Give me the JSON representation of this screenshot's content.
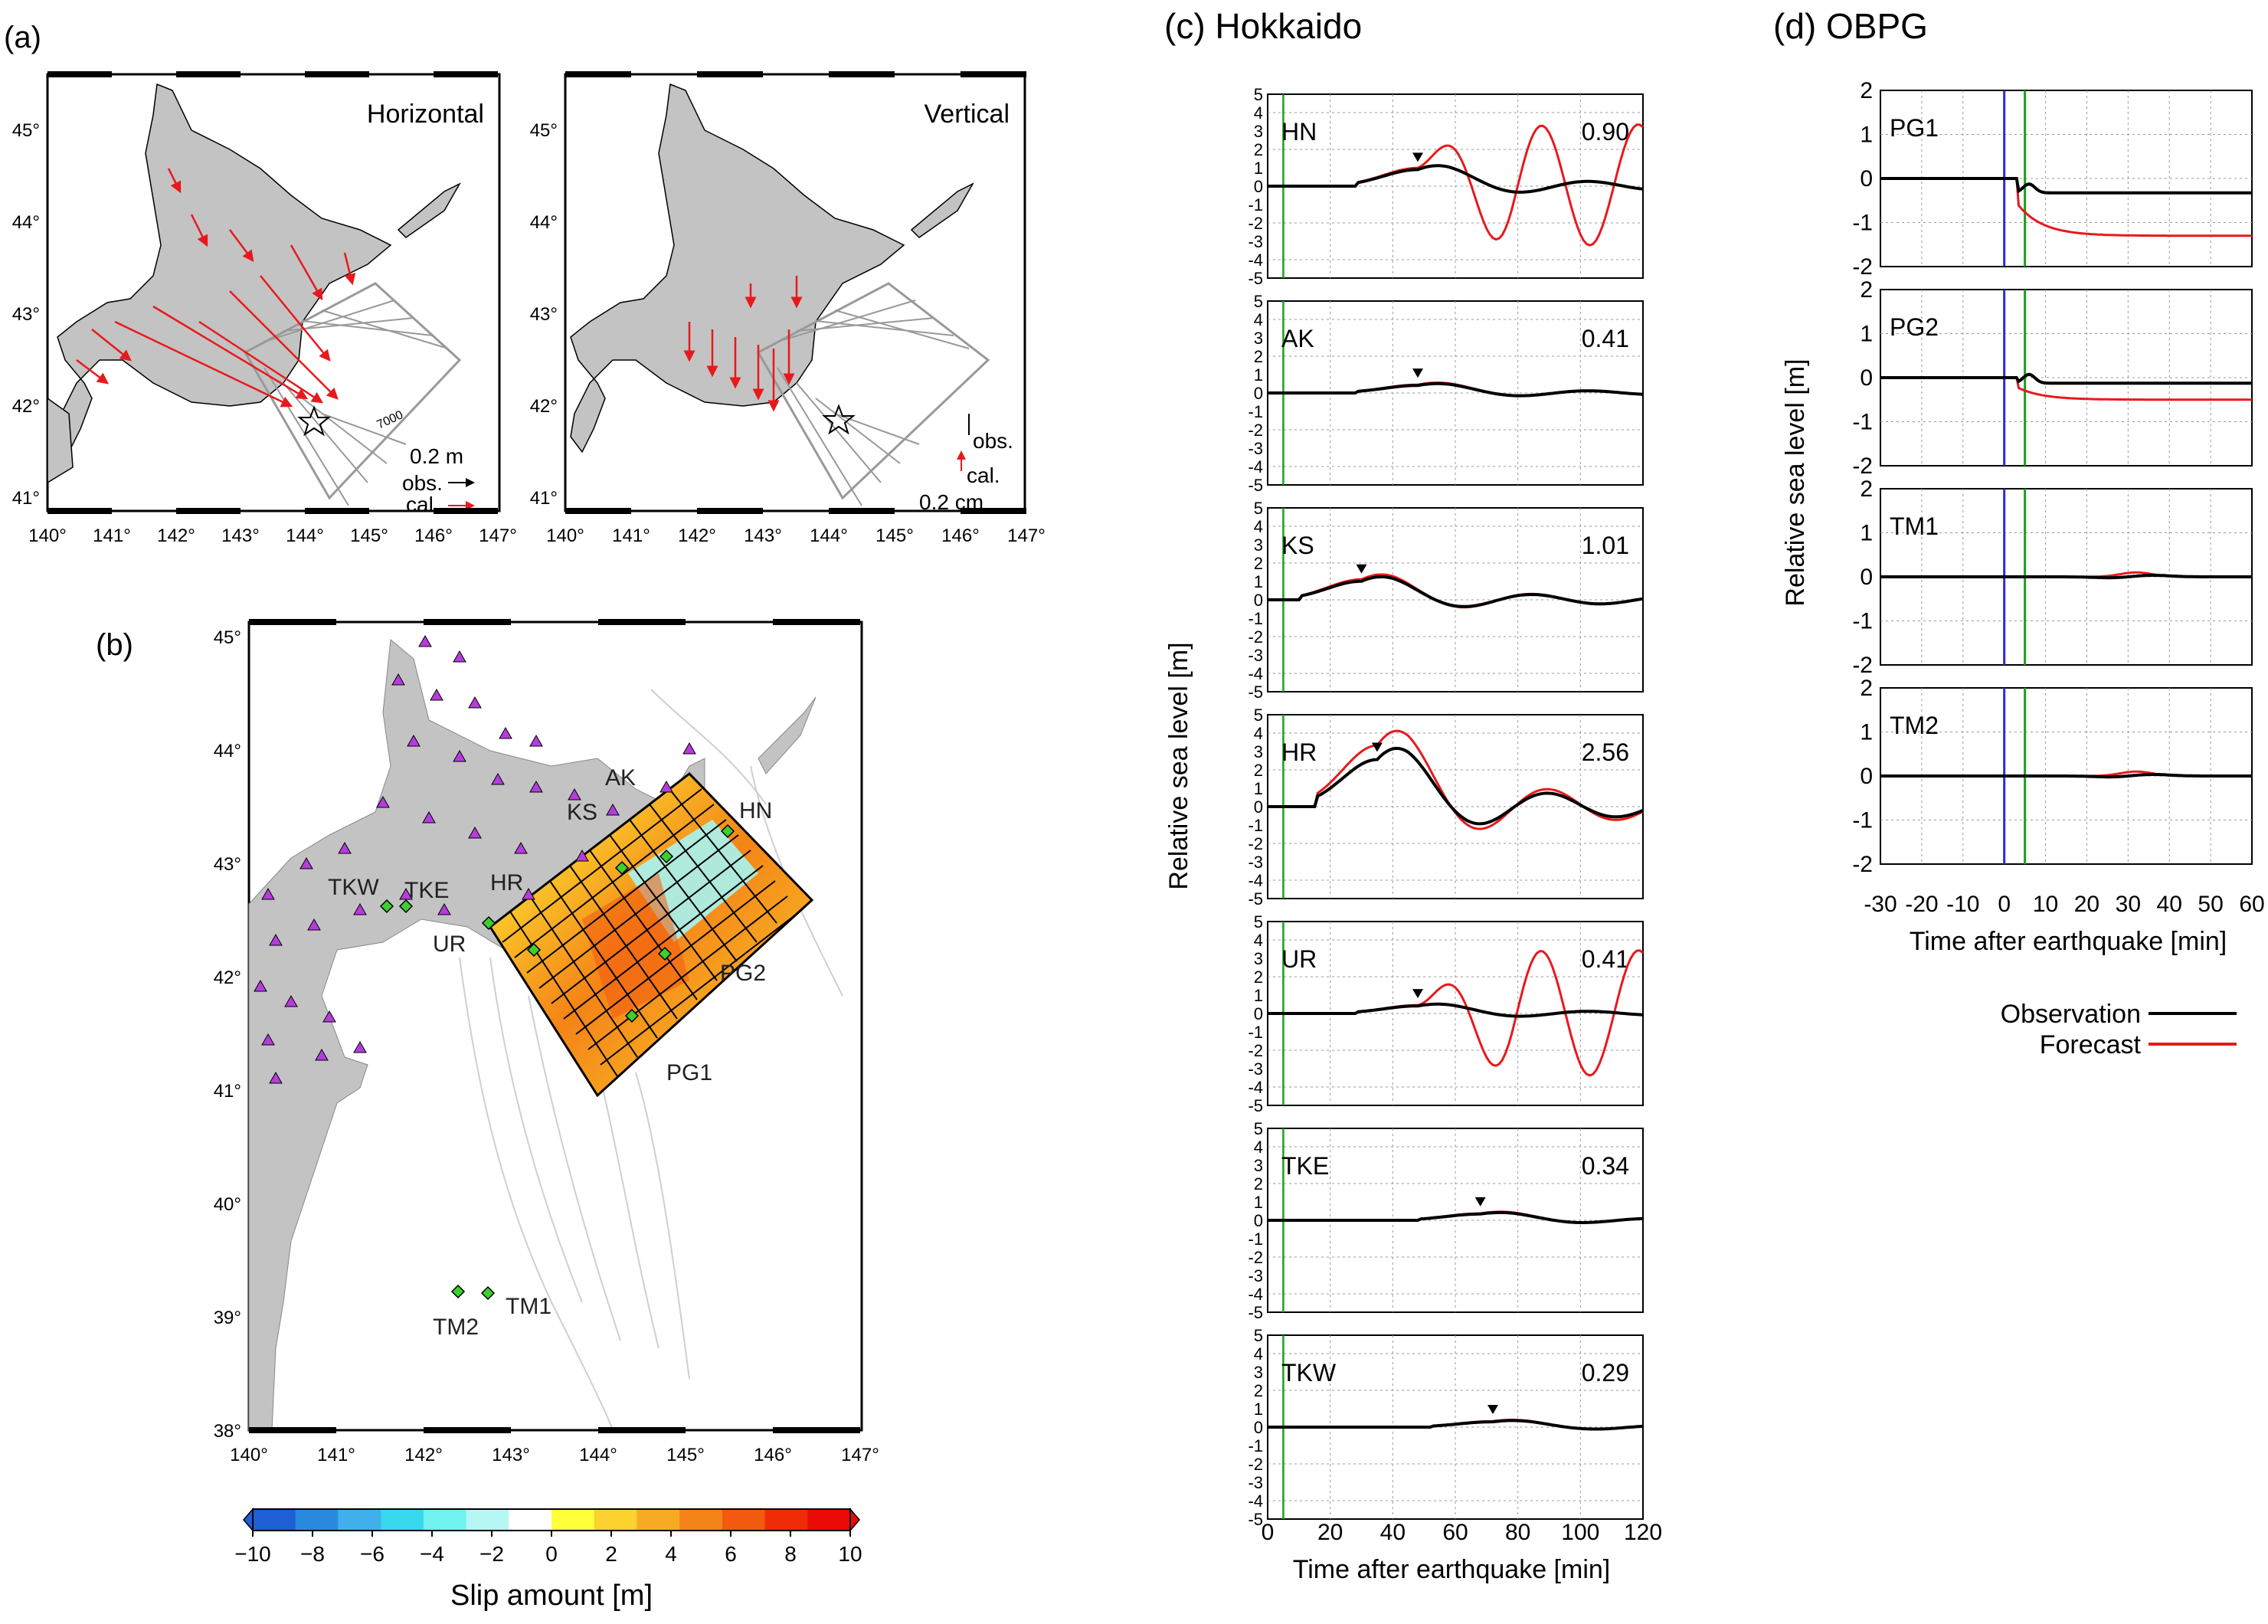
{
  "panels": {
    "a": {
      "label": "(a)",
      "maps": [
        {
          "title": "Horizontal",
          "scale_text": "0.2 m",
          "obs_label": "obs.",
          "cal_label": "cal."
        },
        {
          "title": "Vertical",
          "scale_text": "0.2 cm",
          "obs_label": "obs.",
          "cal_label": "cal."
        }
      ],
      "lon_ticks": [
        "140°",
        "141°",
        "142°",
        "143°",
        "144°",
        "145°",
        "146°",
        "147°"
      ],
      "lat_ticks": [
        "45°",
        "44°",
        "43°",
        "42°",
        "41°"
      ],
      "contour_label": "7000"
    },
    "b": {
      "label": "(b)",
      "lon_ticks": [
        "140°",
        "141°",
        "142°",
        "143°",
        "144°",
        "145°",
        "146°",
        "147°"
      ],
      "lat_ticks": [
        "45°",
        "44°",
        "43°",
        "42°",
        "41°",
        "40°",
        "39°",
        "38°"
      ],
      "station_labels": [
        "AK",
        "KS",
        "HN",
        "HR",
        "TKW",
        "TKE",
        "UR",
        "PG2",
        "PG1",
        "TM2",
        "TM1"
      ],
      "colorbar": {
        "label": "Slip amount [m]",
        "ticks": [
          "−10",
          "−8",
          "−6",
          "−4",
          "−2",
          "0",
          "2",
          "4",
          "6",
          "8",
          "10"
        ],
        "colors": [
          "#1f5fd6",
          "#2a8ae0",
          "#3fb0ea",
          "#37d7ee",
          "#6ff2f0",
          "#b5f7f4",
          "#ffffff",
          "#ffff3a",
          "#fbd22e",
          "#f7ab22",
          "#f48417",
          "#f25a0f",
          "#ef2b08",
          "#eb0a08"
        ]
      }
    },
    "c": {
      "title": "(c) Hokkaido",
      "ylabel": "Relative sea level [m]",
      "xlabel": "Time after earthquake [min]",
      "xticks": [
        "0",
        "20",
        "40",
        "60",
        "80",
        "100",
        "120"
      ],
      "yticks": [
        "5",
        "4",
        "3",
        "2",
        "1",
        "0",
        "-1",
        "-2",
        "-3",
        "-4",
        "-5"
      ],
      "stations": [
        {
          "name": "HN",
          "value": "0.90"
        },
        {
          "name": "AK",
          "value": "0.41"
        },
        {
          "name": "KS",
          "value": "1.01"
        },
        {
          "name": "HR",
          "value": "2.56"
        },
        {
          "name": "UR",
          "value": "0.41"
        },
        {
          "name": "TKE",
          "value": "0.34"
        },
        {
          "name": "TKW",
          "value": "0.29"
        }
      ]
    },
    "d": {
      "title": "(d) OBPG",
      "ylabel": "Relative sea level [m]",
      "xlabel": "Time after earthquake [min]",
      "xticks": [
        "-30",
        "-20",
        "-10",
        "0",
        "10",
        "20",
        "30",
        "40",
        "50",
        "60"
      ],
      "yticks": [
        "2",
        "1",
        "0",
        "-1",
        "-2"
      ],
      "stations": [
        {
          "name": "PG1"
        },
        {
          "name": "PG2"
        },
        {
          "name": "TM1"
        },
        {
          "name": "TM2"
        }
      ],
      "legend": {
        "observation": "Observation",
        "forecast": "Forecast"
      }
    }
  },
  "colors": {
    "observation": "#000000",
    "forecast": "#e8191c",
    "land": "#c3c3c3",
    "station": "#b43ddb",
    "obpg": "#3ccf2f",
    "origin_line": "#2a2ad6",
    "arrival_line": "#18a318"
  }
}
